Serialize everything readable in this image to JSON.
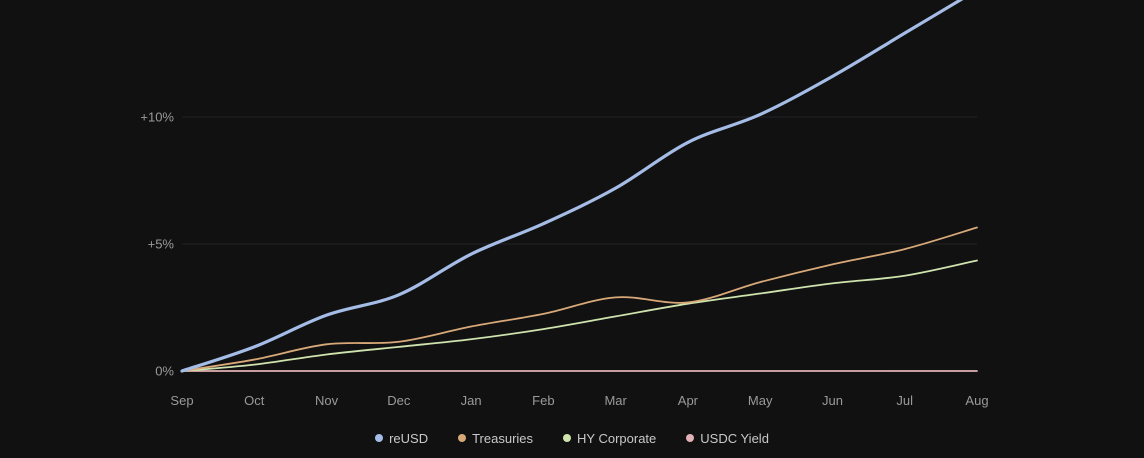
{
  "chart_data": {
    "type": "line",
    "title": "",
    "xlabel": "",
    "ylabel": "",
    "categories": [
      "Sep",
      "Oct",
      "Nov",
      "Dec",
      "Jan",
      "Feb",
      "Mar",
      "Apr",
      "May",
      "Jun",
      "Jul",
      "Aug"
    ],
    "y_ticks": [
      {
        "value": 0,
        "label": "0%"
      },
      {
        "value": 5,
        "label": "+5%"
      },
      {
        "value": 10,
        "label": "+10%"
      }
    ],
    "ylim": [
      0,
      14.5
    ],
    "grid": true,
    "legend_position": "bottom",
    "series": [
      {
        "name": "reUSD",
        "color": "#a5bde6",
        "width": 3.2,
        "values": [
          0,
          0.95,
          2.2,
          3.0,
          4.6,
          5.8,
          7.2,
          9.0,
          10.1,
          11.6,
          13.3,
          15.0
        ]
      },
      {
        "name": "Treasuries",
        "color": "#d8a978",
        "width": 1.8,
        "values": [
          0,
          0.45,
          1.05,
          1.15,
          1.75,
          2.25,
          2.9,
          2.7,
          3.5,
          4.2,
          4.8,
          5.65
        ]
      },
      {
        "name": "HY Corporate",
        "color": "#cfe3ad",
        "width": 1.8,
        "values": [
          0,
          0.25,
          0.65,
          0.95,
          1.25,
          1.65,
          2.15,
          2.65,
          3.05,
          3.45,
          3.75,
          4.35
        ]
      },
      {
        "name": "USDC Yield",
        "color": "#e1b1b5",
        "width": 1.8,
        "values": [
          0,
          0,
          0,
          0,
          0,
          0,
          0,
          0,
          0,
          0,
          0,
          0
        ]
      }
    ]
  }
}
